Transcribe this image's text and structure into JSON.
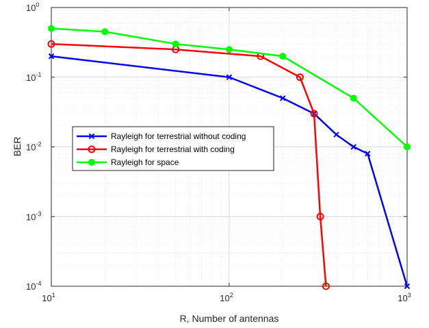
{
  "chart_data": {
    "type": "line",
    "title": "",
    "xlabel": "R, Number of antennas",
    "ylabel": "BER",
    "xscale": "log",
    "yscale": "log",
    "xlim": [
      10,
      1000
    ],
    "ylim": [
      0.0001,
      1
    ],
    "x_ticks": [
      {
        "base": "10",
        "exp": "1"
      },
      {
        "base": "10",
        "exp": "2"
      },
      {
        "base": "10",
        "exp": "3"
      }
    ],
    "y_ticks": [
      {
        "base": "10",
        "exp": "-4"
      },
      {
        "base": "10",
        "exp": "-3"
      },
      {
        "base": "10",
        "exp": "-2"
      },
      {
        "base": "10",
        "exp": "-1"
      },
      {
        "base": "10",
        "exp": "0"
      }
    ],
    "grid": true,
    "legend_position": "middle-left",
    "series": [
      {
        "name": "Rayleigh for terrestrial without coding",
        "color": "#0000ff",
        "marker": "x",
        "x": [
          10,
          100,
          200,
          300,
          400,
          500,
          600,
          1000
        ],
        "y": [
          0.2,
          0.1,
          0.05,
          0.03,
          0.015,
          0.01,
          0.008,
          0.0001
        ]
      },
      {
        "name": "Rayleigh for terrestrial with coding",
        "color": "#ff0000",
        "marker": "o",
        "x": [
          10,
          50,
          150,
          250,
          300,
          325,
          350
        ],
        "y": [
          0.3,
          0.25,
          0.2,
          0.1,
          0.03,
          0.001,
          0.0001
        ]
      },
      {
        "name": "Rayleigh for space",
        "color": "#00ff00",
        "marker": "filled-circle",
        "x": [
          10,
          20,
          50,
          100,
          200,
          500,
          1000
        ],
        "y": [
          0.5,
          0.45,
          0.3,
          0.25,
          0.2,
          0.05,
          0.01
        ]
      }
    ]
  }
}
